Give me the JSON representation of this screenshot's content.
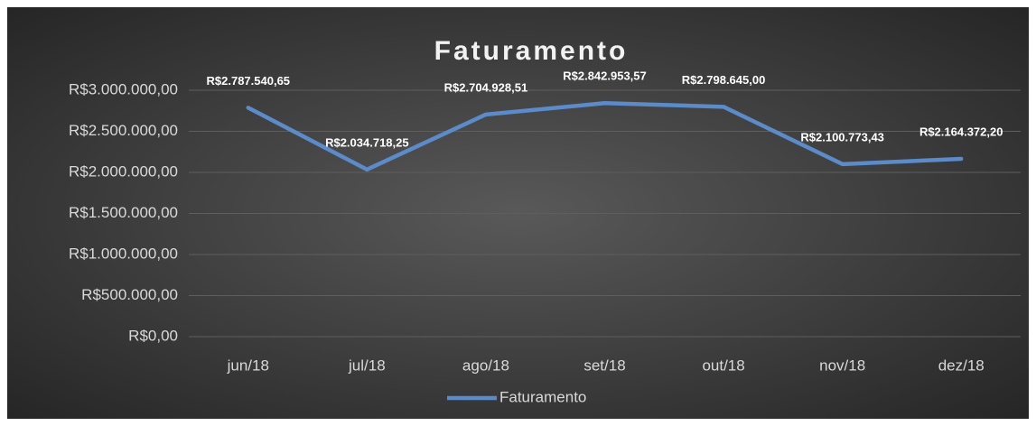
{
  "chart_data": {
    "type": "line",
    "title": "Faturamento",
    "categories": [
      "jun/18",
      "jul/18",
      "ago/18",
      "set/18",
      "out/18",
      "nov/18",
      "dez/18"
    ],
    "series": [
      {
        "name": "Faturamento",
        "color": "#5b8bc9",
        "values": [
          2787540.65,
          2034718.25,
          2704928.51,
          2842953.57,
          2798645.0,
          2100773.43,
          2164372.2
        ],
        "value_labels": [
          "R$2.787.540,65",
          "R$2.034.718,25",
          "R$2.704.928,51",
          "R$2.842.953,57",
          "R$2.798.645,00",
          "R$2.100.773,43",
          "R$2.164.372,20"
        ]
      }
    ],
    "ylim": [
      0,
      3000000
    ],
    "yticks": [
      {
        "value": 0,
        "label": "R$0,00"
      },
      {
        "value": 500000,
        "label": "R$500.000,00"
      },
      {
        "value": 1000000,
        "label": "R$1.000.000,00"
      },
      {
        "value": 1500000,
        "label": "R$1.500.000,00"
      },
      {
        "value": 2000000,
        "label": "R$2.000.000,00"
      },
      {
        "value": 2500000,
        "label": "R$2.500.000,00"
      },
      {
        "value": 3000000,
        "label": "R$3.000.000,00"
      }
    ],
    "grid": true,
    "legend": "bottom"
  }
}
